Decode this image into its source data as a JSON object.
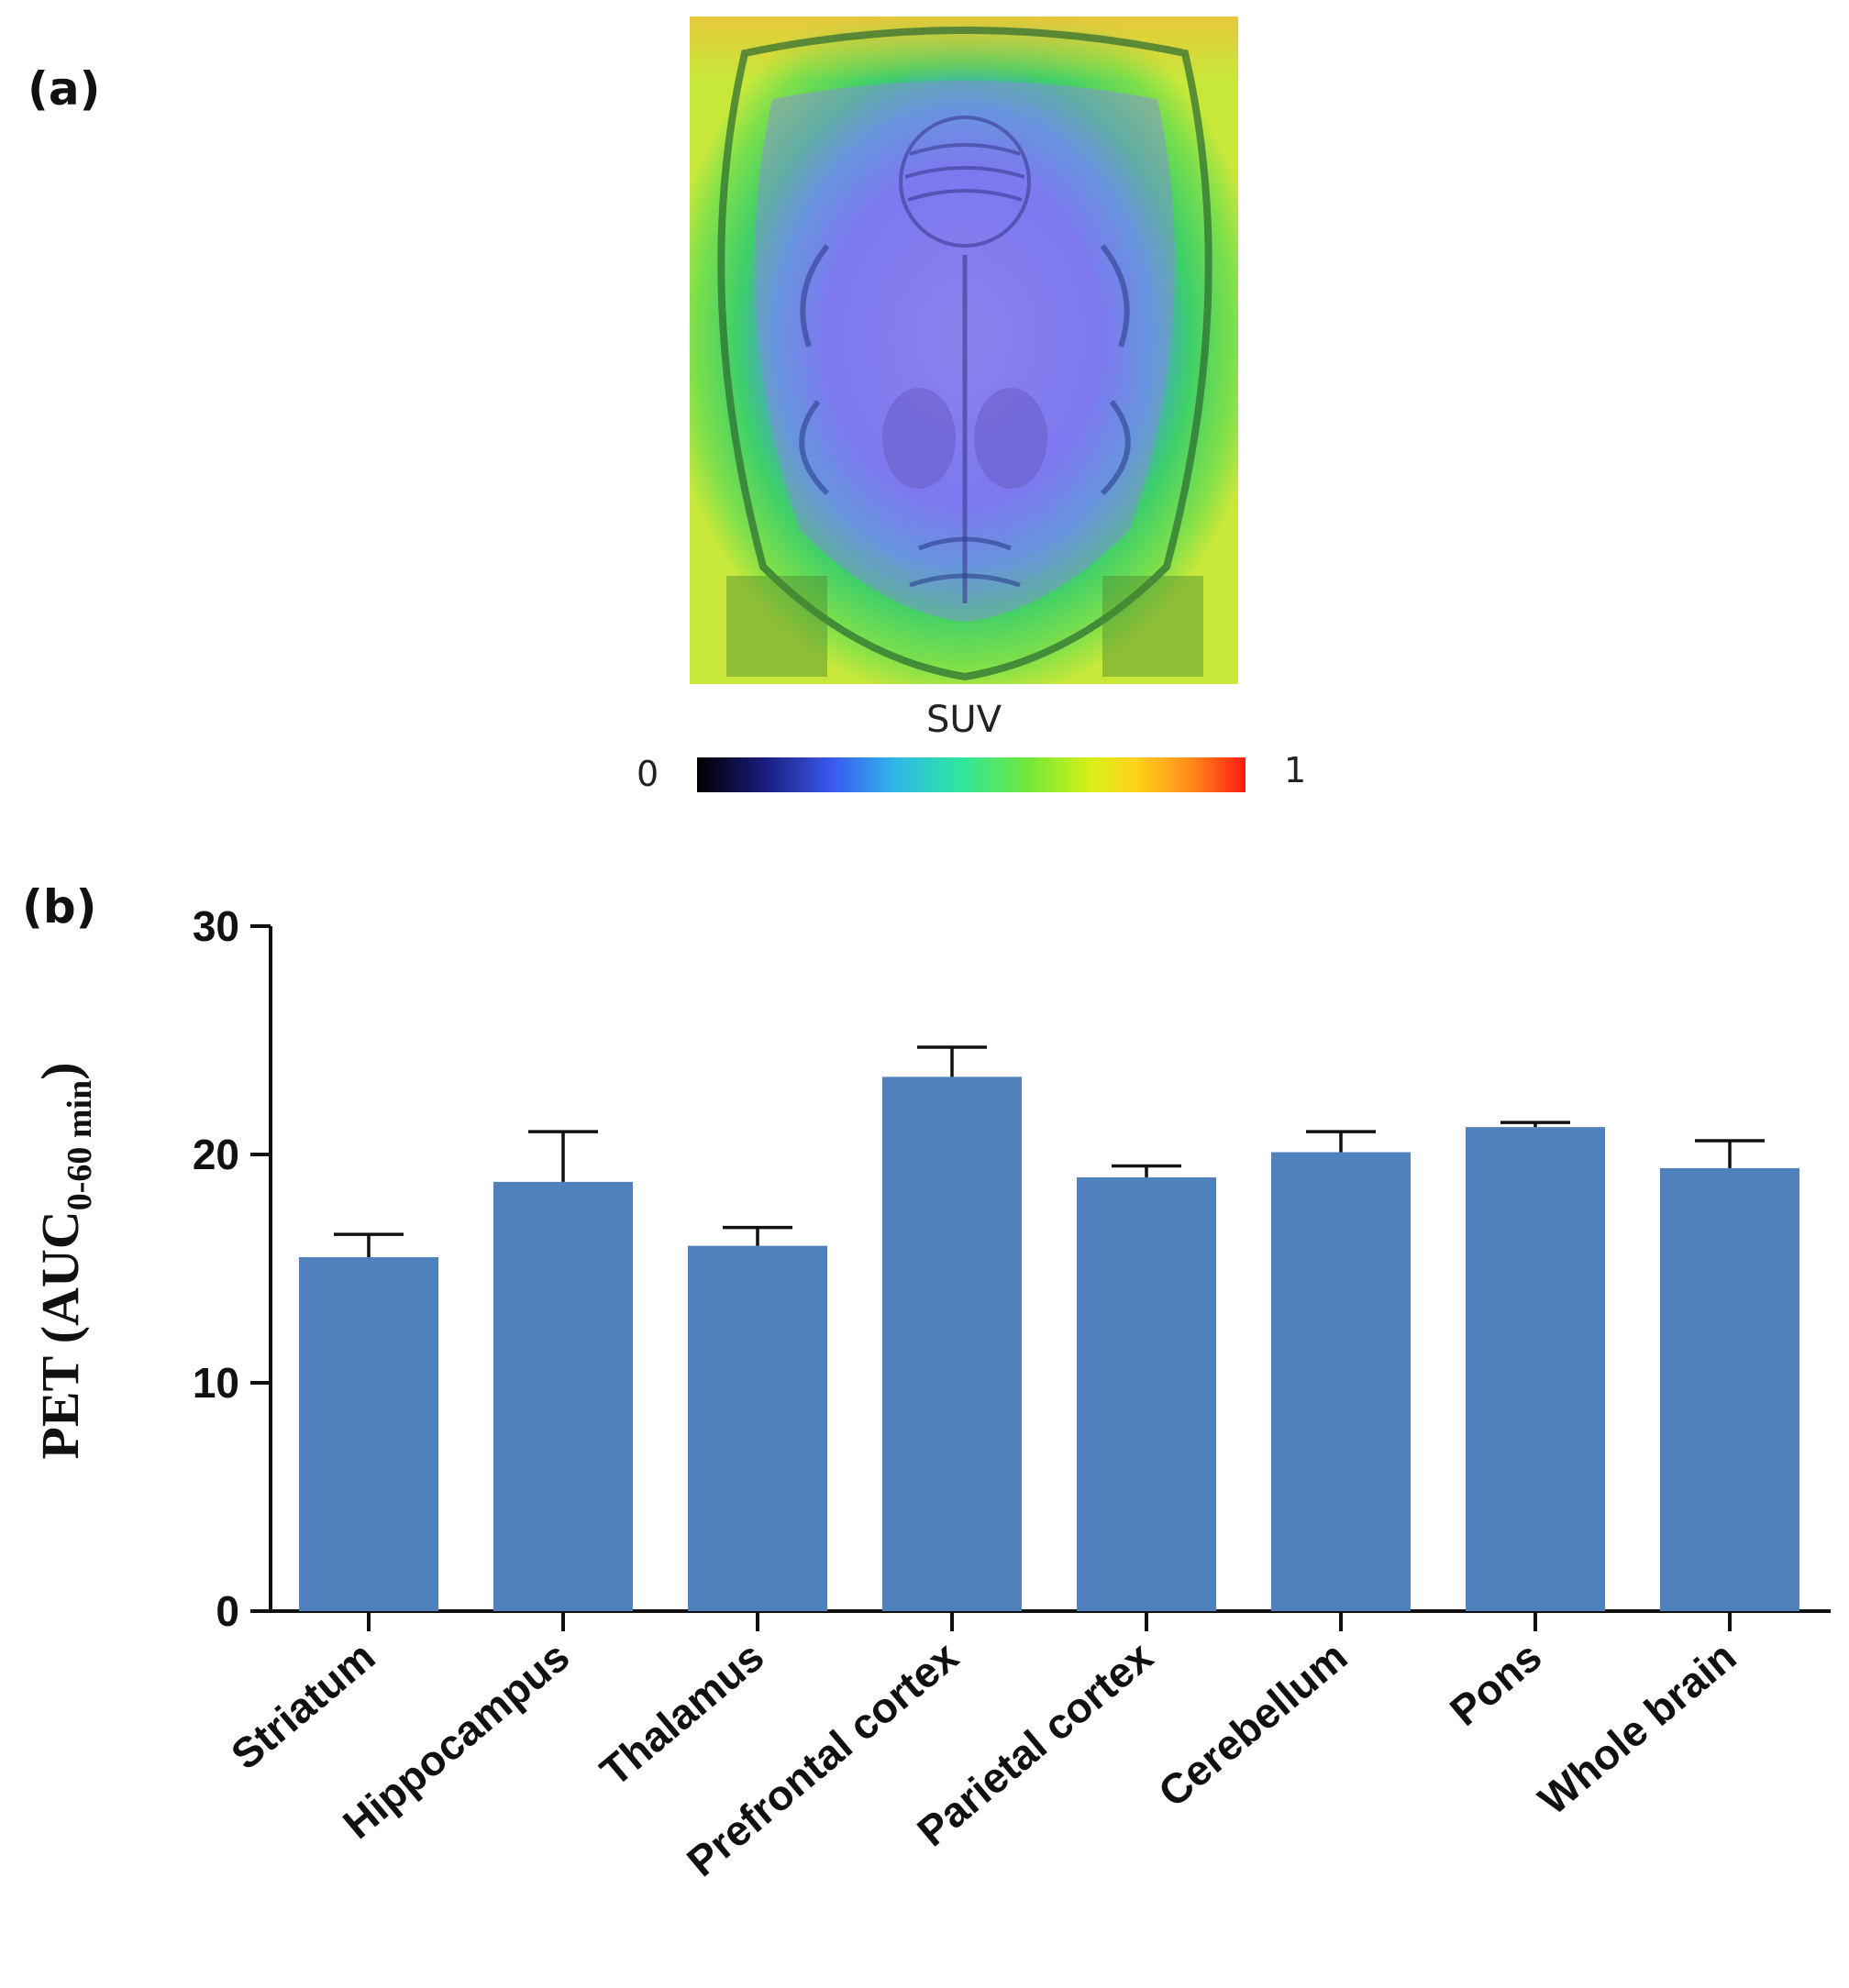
{
  "panel_a": {
    "label": "(a)",
    "colorbar": {
      "title": "SUV",
      "min_label": "0",
      "max_label": "1"
    }
  },
  "panel_b": {
    "label": "(b)"
  },
  "chart_data": {
    "type": "bar",
    "title": "",
    "xlabel": "",
    "ylabel_main": "PET (AUC",
    "ylabel_sub": "0-60 min",
    "ylabel_close": ")",
    "ylim": [
      0,
      30
    ],
    "yticks": [
      0,
      10,
      20,
      30
    ],
    "categories": [
      "Striatum",
      "Hippocampus",
      "Thalamus",
      "Prefrontal cortex",
      "Parietal cortex",
      "Cerebellum",
      "Pons",
      "Whole brain"
    ],
    "values": [
      15.5,
      18.8,
      16.0,
      23.4,
      19.0,
      20.1,
      21.2,
      19.4
    ],
    "errors": [
      1.0,
      2.2,
      0.8,
      1.3,
      0.5,
      0.9,
      0.2,
      1.2
    ],
    "bar_color": "#4f81bd"
  }
}
